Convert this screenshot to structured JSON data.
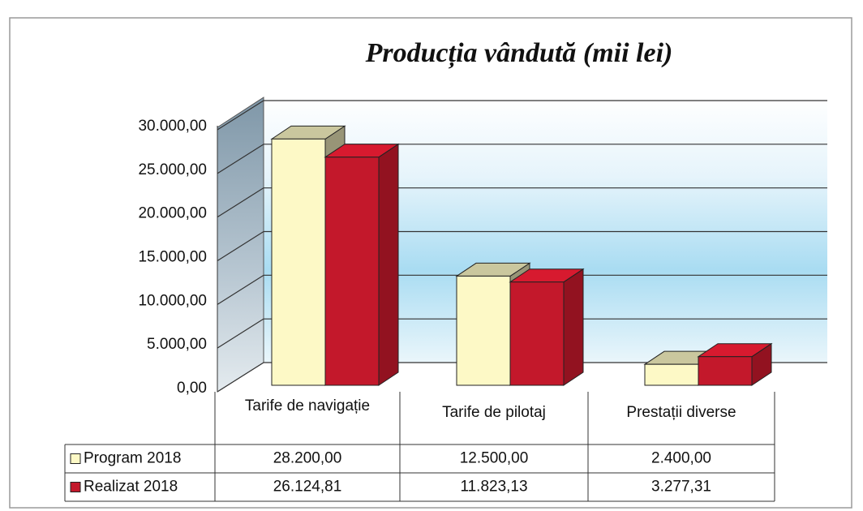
{
  "chart_data": {
    "type": "bar3d",
    "title": "Producția vândută (mii lei)",
    "categories": [
      "Tarife de navigație",
      "Tarife de pilotaj",
      "Prestații diverse"
    ],
    "series": [
      {
        "name": "Program 2018",
        "color": "#fdf9c6",
        "values": [
          28200,
          12500,
          2400
        ],
        "value_labels": [
          "28.200,00",
          "12.500,00",
          "2.400,00"
        ]
      },
      {
        "name": "Realizat 2018",
        "color": "#c3182b",
        "values": [
          26124.81,
          11823.13,
          3277.31
        ],
        "value_labels": [
          "26.124,81",
          "11.823,13",
          "3.277,31"
        ]
      }
    ],
    "ylim": [
      0,
      30000
    ],
    "yticks": [
      {
        "value": 0,
        "label": "0,00"
      },
      {
        "value": 5000,
        "label": "5.000,00"
      },
      {
        "value": 10000,
        "label": "10.000,00"
      },
      {
        "value": 15000,
        "label": "15.000,00"
      },
      {
        "value": 20000,
        "label": "20.000,00"
      },
      {
        "value": 25000,
        "label": "25.000,00"
      },
      {
        "value": 30000,
        "label": "30.000,00"
      }
    ],
    "grid": true,
    "legend": "table"
  }
}
